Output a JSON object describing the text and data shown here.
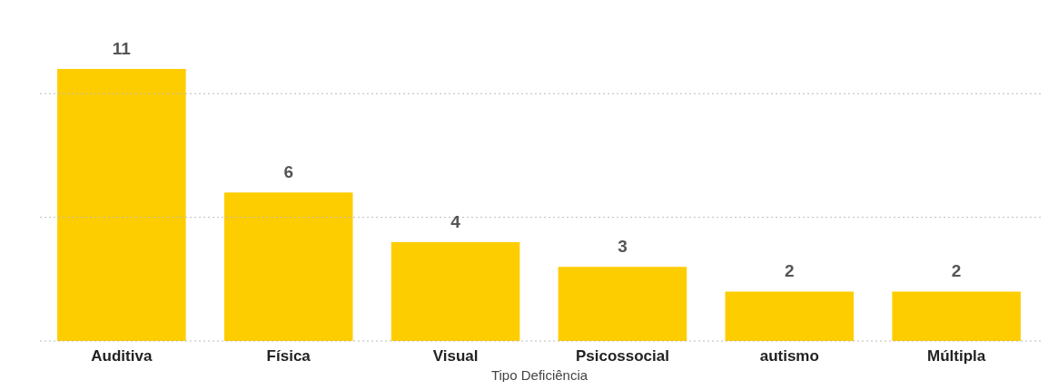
{
  "chart_data": {
    "type": "bar",
    "xlabel": "Tipo Deficiência",
    "categories": [
      "Auditiva",
      "Física",
      "Visual",
      "Psicossocial",
      "autismo",
      "Múltipla"
    ],
    "values": [
      11,
      6,
      4,
      3,
      2,
      2
    ],
    "color": "#fecd00",
    "ref_lines": [
      {
        "axis": "y",
        "value": 0,
        "color": "#bbbbbb",
        "line_style": "dotted"
      },
      {
        "axis": "y",
        "value": 5,
        "color": "#bbbbbb",
        "line_style": "dotted"
      },
      {
        "axis": "y",
        "value": 10,
        "color": "#bbbbbb",
        "line_style": "dotted"
      }
    ],
    "tick_labels": "x",
    "data_labels": true
  }
}
